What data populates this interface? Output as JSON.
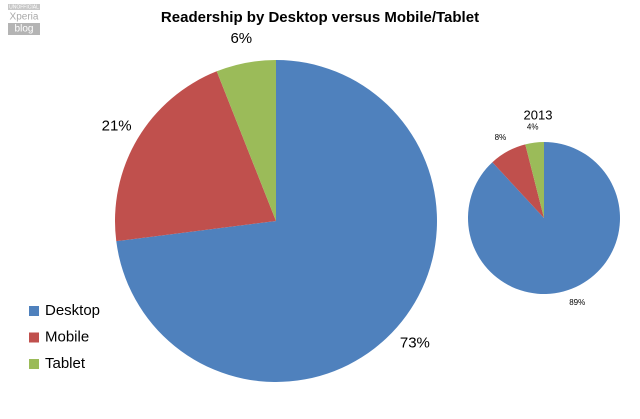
{
  "watermark": [
    "UNOFFICIAL",
    "Xperia",
    "blog"
  ],
  "chart_data": [
    {
      "type": "pie",
      "title": "Readership by Desktop versus Mobile/Tablet",
      "categories": [
        "Desktop",
        "Mobile",
        "Tablet"
      ],
      "values": [
        73,
        21,
        6
      ],
      "value_labels": [
        "73%",
        "21%",
        "6%"
      ],
      "colors": [
        "#4f81bd",
        "#c0504d",
        "#9bbb59"
      ],
      "legend": "left"
    },
    {
      "type": "pie",
      "title": "2013",
      "values": [
        89,
        8,
        4
      ],
      "value_labels": [
        "89%",
        "8%",
        "4%"
      ],
      "colors": [
        "#4f81bd",
        "#c0504d",
        "#9bbb59"
      ]
    }
  ]
}
